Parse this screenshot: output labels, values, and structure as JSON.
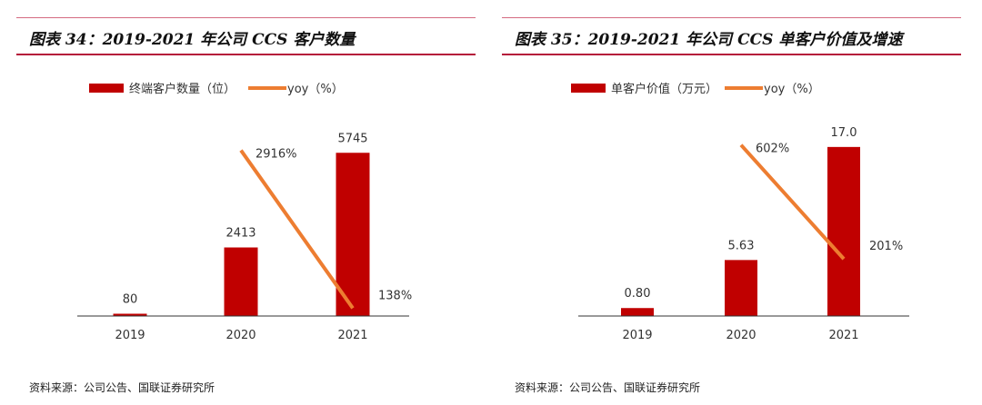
{
  "colors": {
    "bar": "#c00000",
    "line": "#ed7d31",
    "rule": "#b5183a"
  },
  "chart_data": [
    {
      "type": "bar+line",
      "title": "图表 34：2019-2021 年公司 CCS 客户数量",
      "categories": [
        "2019",
        "2020",
        "2021"
      ],
      "series": [
        {
          "name": "终端客户数量（位）",
          "type": "bar",
          "axis": "primary",
          "values": [
            80,
            2413,
            5745
          ],
          "labels": [
            "80",
            "2413",
            "5745"
          ]
        },
        {
          "name": "yoy（%）",
          "type": "line",
          "axis": "secondary",
          "x": [
            "2020",
            "2021"
          ],
          "values": [
            2916,
            138
          ],
          "labels": [
            "2916%",
            "138%"
          ]
        }
      ],
      "ylim": [
        0,
        7000
      ],
      "y2lim": [
        0,
        3500
      ],
      "grid": false,
      "legend": "top",
      "source": "资料来源：公司公告、国联证券研究所"
    },
    {
      "type": "bar+line",
      "title": "图表 35：2019-2021 年公司 CCS 单客户价值及增速",
      "categories": [
        "2019",
        "2020",
        "2021"
      ],
      "series": [
        {
          "name": "单客户价值（万元）",
          "type": "bar",
          "axis": "primary",
          "values": [
            0.8,
            5.63,
            17.0
          ],
          "labels": [
            "0.80",
            "5.63",
            "17.0"
          ]
        },
        {
          "name": "yoy（%）",
          "type": "line",
          "axis": "secondary",
          "x": [
            "2020",
            "2021"
          ],
          "values": [
            602,
            201
          ],
          "labels": [
            "602%",
            "201%"
          ]
        }
      ],
      "ylim": [
        0,
        20
      ],
      "y2lim": [
        0,
        700
      ],
      "grid": false,
      "legend": "top",
      "source": "资料来源：公司公告、国联证券研究所"
    }
  ]
}
